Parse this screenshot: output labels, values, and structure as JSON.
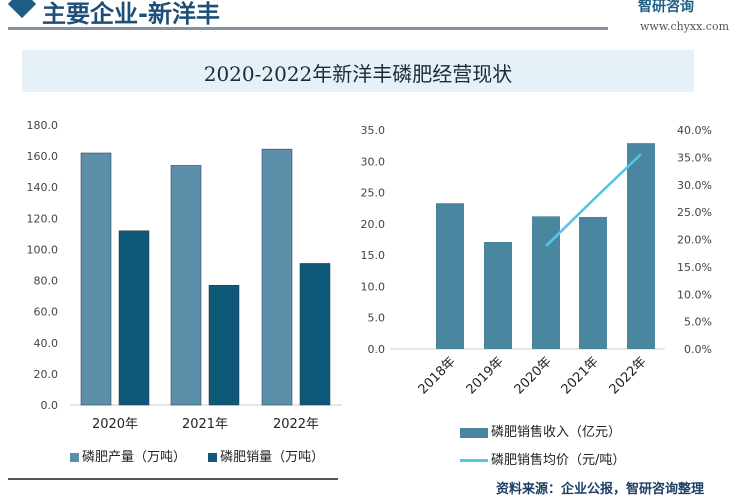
{
  "header": {
    "title": "主要企业-新洋丰",
    "logo": "智研咨询",
    "url": "www.chyxx.com"
  },
  "banner": {
    "title": "2020-2022年新洋丰磷肥经营现状"
  },
  "colors": {
    "production": "#5c8fa9",
    "sales": "#0e5878",
    "revenue": "#4a86a0",
    "price_line": "#4fc6ea"
  },
  "chart_data": [
    {
      "type": "bar",
      "categories": [
        "2020年",
        "2021年",
        "2022年"
      ],
      "series": [
        {
          "name": "磷肥产量（万吨）",
          "values": [
            162,
            154,
            164.5
          ]
        },
        {
          "name": "磷肥销量（万吨）",
          "values": [
            112,
            77,
            91
          ]
        }
      ],
      "ylim": [
        0,
        180
      ],
      "yticks": [
        "0.0",
        "20.0",
        "40.0",
        "60.0",
        "80.0",
        "100.0",
        "120.0",
        "140.0",
        "160.0",
        "180.0"
      ],
      "grid": false,
      "legend": "bottom"
    },
    {
      "type": "bar+line",
      "categories": [
        "2018年",
        "2019年",
        "2020年",
        "2021年",
        "2022年"
      ],
      "series": [
        {
          "name": "磷肥销售收入（亿元）",
          "type": "bar",
          "axis": "left",
          "values": [
            23.3,
            17.1,
            21.2,
            21.1,
            32.9
          ]
        },
        {
          "name": "磷肥销售均价（元/吨）",
          "type": "line",
          "axis": "right",
          "values": [
            null,
            null,
            18.8,
            27.2,
            35.6
          ]
        }
      ],
      "ylim_left": [
        0,
        35
      ],
      "ylim_right": [
        0,
        40
      ],
      "yticks_left": [
        "0.0",
        "5.0",
        "10.0",
        "15.0",
        "20.0",
        "25.0",
        "30.0",
        "35.0"
      ],
      "yticks_right": [
        "0.0%",
        "5.0%",
        "10.0%",
        "15.0%",
        "20.0%",
        "25.0%",
        "30.0%",
        "35.0%",
        "40.0%"
      ],
      "grid": false,
      "legend": "bottom"
    }
  ],
  "footer": {
    "source": "资料来源：企业公报，智研咨询整理"
  }
}
